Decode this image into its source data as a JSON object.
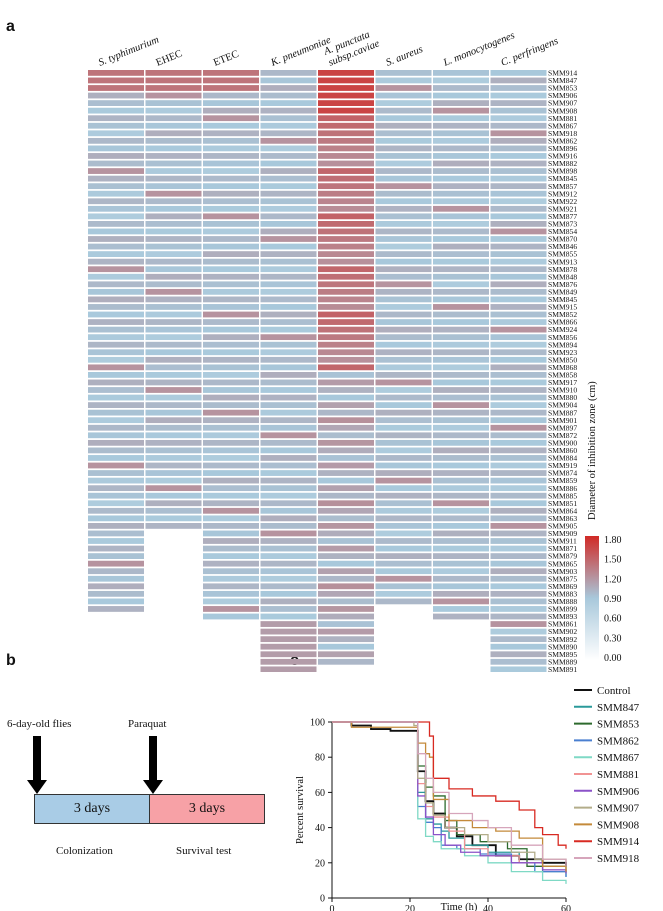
{
  "panels": {
    "a": "a",
    "b": "b",
    "c": "c"
  },
  "heatmap": {
    "columns": [
      "S. typhimurium",
      "EHEC",
      "ETEC",
      "K. pneumoniae",
      "A. punctata subsp.caviae",
      "S. aureus",
      "L. monocytogenes",
      "C. perfringens"
    ],
    "column_lines": [
      [
        "S. typhimurium"
      ],
      [
        "EHEC"
      ],
      [
        "ETEC"
      ],
      [
        "K. pneumoniae"
      ],
      [
        "A. punctata",
        "subsp.caviae"
      ],
      [
        "S. aureus"
      ],
      [
        "L. monocytogenes"
      ],
      [
        "C. perfringens"
      ]
    ],
    "italic": [
      true,
      false,
      false,
      true,
      true,
      true,
      true,
      true
    ],
    "rows": [
      "SMM914",
      "SMM847",
      "SMM853",
      "SMM906",
      "SMM907",
      "SMM908",
      "SMM881",
      "SMM867",
      "SMM918",
      "SMM862",
      "SMM896",
      "SMM916",
      "SMM882",
      "SMM898",
      "SMM845",
      "SMM857",
      "SMM912",
      "SMM922",
      "SMM921",
      "SMM877",
      "SMM873",
      "SMM854",
      "SMM870",
      "SMM846",
      "SMM855",
      "SMM913",
      "SMM878",
      "SMM848",
      "SMM876",
      "SMM849",
      "SMM845",
      "SMM915",
      "SMM852",
      "SMM866",
      "SMM924",
      "SMM856",
      "SMM894",
      "SMM923",
      "SMM850",
      "SMM868",
      "SMM858",
      "SMM917",
      "SMM910",
      "SMM880",
      "SMM904",
      "SMM887",
      "SMM901",
      "SMM897",
      "SMM872",
      "SMM900",
      "SMM860",
      "SMM884",
      "SMM919",
      "SMM874",
      "SMM859",
      "SMM886",
      "SMM885",
      "SMM851",
      "SMM864",
      "SMM863",
      "SMM905",
      "SMM909",
      "SMM911",
      "SMM871",
      "SMM879",
      "SMM865",
      "SMM903",
      "SMM875",
      "SMM869",
      "SMM883",
      "SMM888",
      "SMM899",
      "SMM893",
      "SMM861",
      "SMM902",
      "SMM892",
      "SMM890",
      "SMM895",
      "SMM889",
      "SMM891"
    ],
    "colorbar": {
      "title": "Diameter of inhibition zone (cm)",
      "ticks": [
        "1.80",
        "1.50",
        "1.20",
        "0.90",
        "0.60",
        "0.30",
        "0.00"
      ],
      "min": 0.0,
      "max": 1.8,
      "colors": [
        "#ffffff",
        "#a8c8db",
        "#d12a26"
      ]
    },
    "colored_rows_per_column": [
      72,
      61,
      73,
      80,
      79,
      71,
      73,
      80
    ],
    "notable_values": {
      "A. punctata subsp.caviae top rows": 1.8,
      "typical": 0.9
    }
  },
  "schematic": {
    "label_flies": "6-day-old flies",
    "label_paraquat": "Paraquat",
    "box1": "3 days",
    "box2": "3 days",
    "caption1": "Colonization",
    "caption2": "Survival test",
    "color_box1": "#a9cce6",
    "color_box2": "#f7a1a6"
  },
  "chart_data": {
    "type": "line",
    "title": "",
    "xlabel": "Time (h)",
    "ylabel": "Percent survival",
    "xlim": [
      0,
      60
    ],
    "ylim": [
      0,
      100
    ],
    "xticks": [
      "0",
      "20",
      "40",
      "60"
    ],
    "yticks": [
      "0",
      "20",
      "40",
      "60",
      "80",
      "100"
    ],
    "legend_position": "right",
    "series": [
      {
        "name": "Control",
        "color": "#111111",
        "x": [
          0,
          5,
          10,
          15,
          21,
          22,
          24,
          26,
          29,
          32,
          36,
          42,
          48,
          54,
          60
        ],
        "y": [
          100,
          98,
          96,
          95,
          95,
          72,
          55,
          48,
          40,
          35,
          30,
          24,
          22,
          20,
          18
        ]
      },
      {
        "name": "SMM847",
        "color": "#2a9a9a",
        "x": [
          0,
          21,
          22,
          24,
          26,
          28,
          30,
          34,
          40,
          48,
          54,
          60
        ],
        "y": [
          100,
          100,
          60,
          45,
          42,
          38,
          34,
          30,
          26,
          20,
          15,
          12
        ]
      },
      {
        "name": "SMM853",
        "color": "#2d6a2d",
        "x": [
          0,
          21,
          22,
          24,
          26,
          29,
          32,
          38,
          45,
          50,
          60
        ],
        "y": [
          100,
          100,
          75,
          63,
          58,
          44,
          36,
          32,
          28,
          18,
          15
        ]
      },
      {
        "name": "SMM862",
        "color": "#4a7fd0",
        "x": [
          0,
          21,
          22,
          24,
          26,
          28,
          32,
          38,
          46,
          52,
          60
        ],
        "y": [
          100,
          100,
          52,
          43,
          40,
          30,
          28,
          25,
          20,
          15,
          12
        ]
      },
      {
        "name": "SMM867",
        "color": "#7fd9c5",
        "x": [
          0,
          21,
          22,
          24,
          26,
          28,
          34,
          40,
          46,
          54,
          60
        ],
        "y": [
          100,
          100,
          45,
          35,
          32,
          28,
          24,
          20,
          15,
          10,
          8
        ]
      },
      {
        "name": "SMM881",
        "color": "#f19393",
        "x": [
          0,
          20,
          22,
          24,
          26,
          30,
          34,
          40,
          48,
          54,
          60
        ],
        "y": [
          100,
          100,
          65,
          52,
          46,
          38,
          28,
          24,
          20,
          16,
          14
        ]
      },
      {
        "name": "SMM906",
        "color": "#8b52c8",
        "x": [
          0,
          21,
          22,
          24,
          26,
          29,
          33,
          38,
          46,
          54,
          60
        ],
        "y": [
          100,
          100,
          58,
          46,
          36,
          30,
          26,
          24,
          20,
          16,
          14
        ]
      },
      {
        "name": "SMM907",
        "color": "#b3ad8a",
        "x": [
          0,
          21,
          22,
          24,
          26,
          29,
          34,
          40,
          46,
          52,
          60
        ],
        "y": [
          100,
          98,
          68,
          54,
          47,
          40,
          36,
          32,
          26,
          22,
          18
        ]
      },
      {
        "name": "SMM908",
        "color": "#c48a3a",
        "x": [
          0,
          5,
          21,
          22,
          24,
          25,
          26,
          30,
          36,
          42,
          48,
          54,
          60
        ],
        "y": [
          100,
          97,
          97,
          88,
          82,
          80,
          56,
          44,
          40,
          38,
          34,
          18,
          15
        ]
      },
      {
        "name": "SMM914",
        "color": "#d82a22",
        "x": [
          0,
          20,
          22,
          25,
          26,
          30,
          36,
          42,
          48,
          52,
          54,
          58,
          60
        ],
        "y": [
          100,
          100,
          100,
          92,
          68,
          62,
          58,
          55,
          50,
          40,
          36,
          30,
          28
        ]
      },
      {
        "name": "SMM918",
        "color": "#d6a5bb",
        "x": [
          0,
          21,
          22,
          24,
          26,
          30,
          36,
          40,
          46,
          54,
          60
        ],
        "y": [
          100,
          100,
          82,
          68,
          60,
          48,
          44,
          40,
          30,
          22,
          18
        ]
      }
    ]
  }
}
